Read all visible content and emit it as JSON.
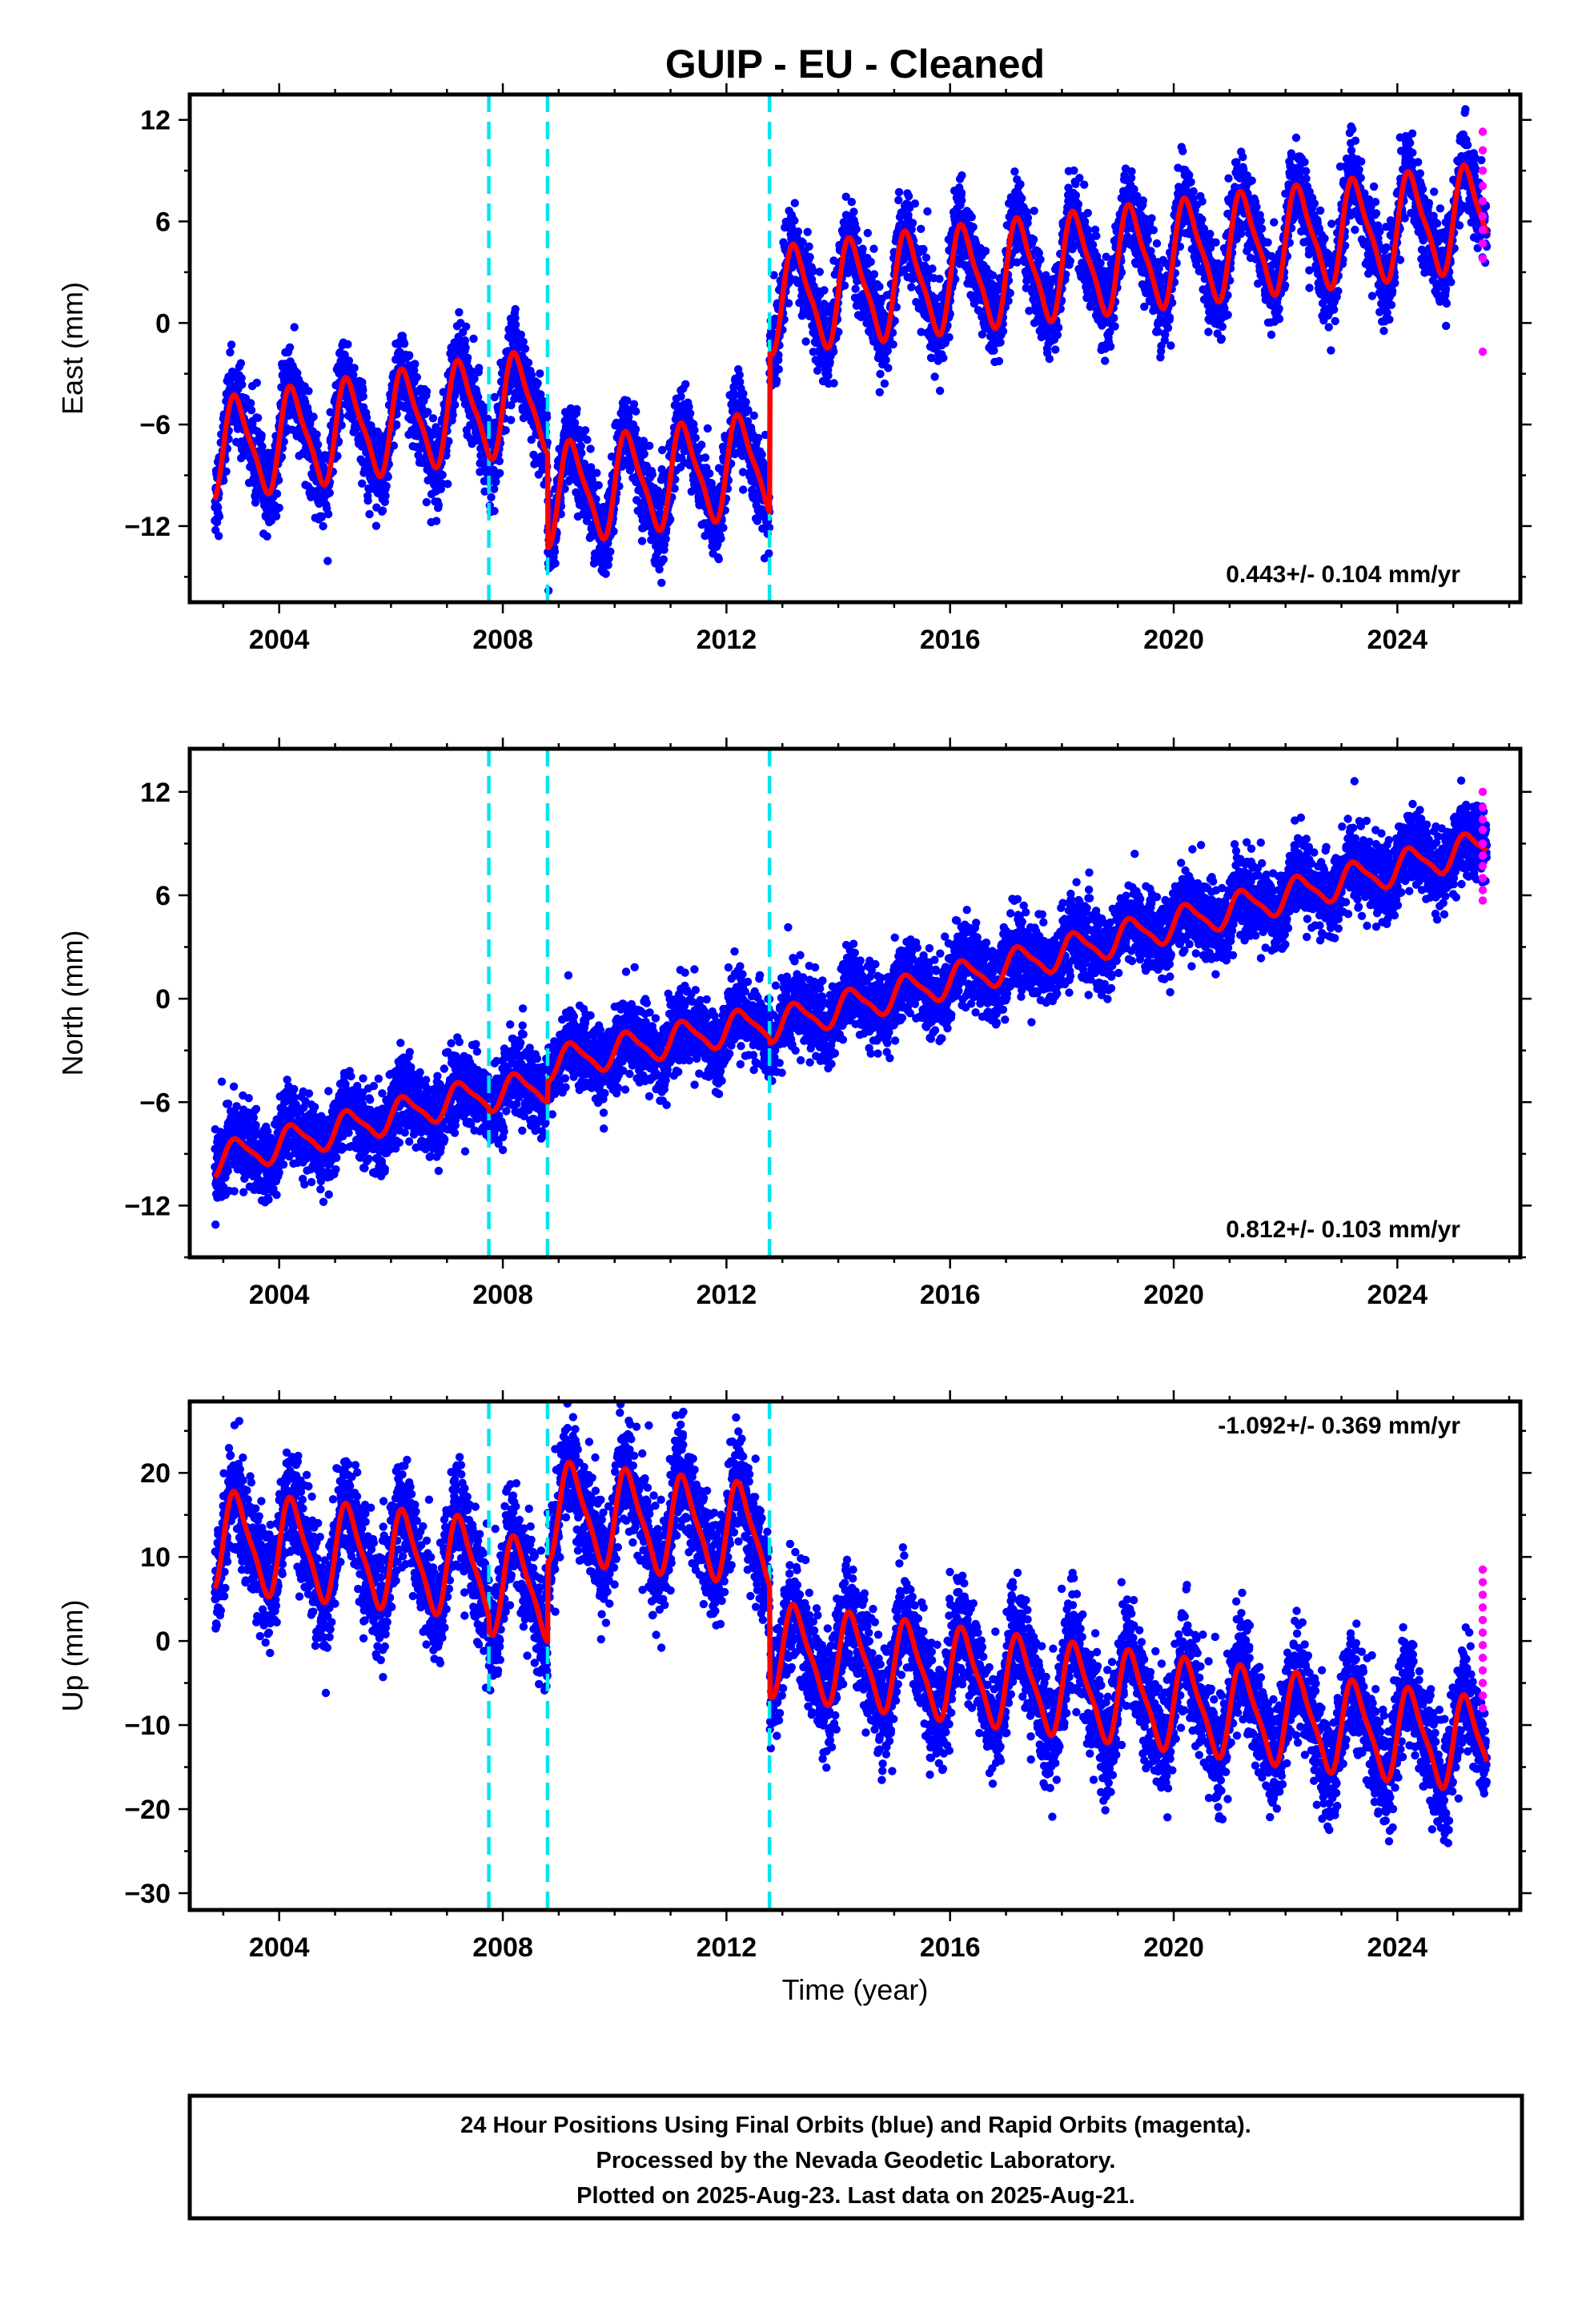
{
  "title": "GUIP  - EU - Cleaned",
  "caption": [
    "24 Hour Positions Using Final Orbits (blue) and Rapid Orbits (magenta).",
    "Processed by the Nevada Geodetic Laboratory.",
    "Plotted on 2025-Aug-23. Last data on 2025-Aug-21."
  ],
  "colors": {
    "final_orbits": "#0000ff",
    "rapid_orbits": "#ff00ff",
    "model_fit": "#ff0000",
    "offset_lines": "#00e5ee",
    "frame": "#000000"
  },
  "chart_data": [
    {
      "type": "scatter",
      "component": "east",
      "ylabel": "East (mm)",
      "xlabel": "",
      "xlim": [
        2002.4,
        2026.2
      ],
      "ylim": [
        -16.5,
        13.5
      ],
      "xticks": [
        2004,
        2008,
        2012,
        2016,
        2020,
        2024
      ],
      "yticks": [
        -12,
        -6,
        0,
        6,
        12
      ],
      "grid": false,
      "rate": "0.443+/- 0.104 mm/yr",
      "rate_position": "bottom-right",
      "offset_epochs": [
        2007.75,
        2008.8,
        2012.77
      ],
      "segments": [
        {
          "start": 2002.85,
          "end": 2007.75,
          "start_value": -7.5,
          "end_value": -5.0,
          "annual_amplitude": 2.8
        },
        {
          "start": 2007.75,
          "end": 2008.8,
          "start_value": -5.0,
          "end_value": -4.6,
          "annual_amplitude": 2.8
        },
        {
          "start": 2008.8,
          "end": 2012.77,
          "start_value": -10.2,
          "end_value": -8.2,
          "annual_amplitude": 2.8
        },
        {
          "start": 2012.77,
          "end": 2025.6,
          "start_value": 1.3,
          "end_value": 6.3,
          "annual_amplitude": 2.9
        }
      ],
      "scatter_sigma": 1.2,
      "rapid_values": [
        11.3,
        10.2,
        9.0,
        8.1,
        7.2,
        6.3,
        5.5,
        4.7,
        3.8,
        -1.7
      ]
    },
    {
      "type": "scatter",
      "component": "north",
      "ylabel": "North (mm)",
      "xlabel": "",
      "xlim": [
        2002.4,
        2026.2
      ],
      "ylim": [
        -15.0,
        14.5
      ],
      "xticks": [
        2004,
        2008,
        2012,
        2016,
        2020,
        2024
      ],
      "yticks": [
        -12,
        -6,
        0,
        6,
        12
      ],
      "grid": false,
      "rate": "0.812+/- 0.103 mm/yr",
      "rate_position": "bottom-right",
      "offset_epochs": [
        2007.75,
        2008.8,
        2012.77
      ],
      "segments": [
        {
          "start": 2002.85,
          "end": 2007.75,
          "start_value": -9.4,
          "end_value": -5.4,
          "annual_amplitude": 0.9
        },
        {
          "start": 2007.75,
          "end": 2008.8,
          "start_value": -5.6,
          "end_value": -5.0,
          "annual_amplitude": 0.9
        },
        {
          "start": 2008.8,
          "end": 2012.77,
          "start_value": -3.8,
          "end_value": -1.3,
          "annual_amplitude": 0.9
        },
        {
          "start": 2012.77,
          "end": 2025.6,
          "start_value": -1.6,
          "end_value": 8.9,
          "annual_amplitude": 0.9
        }
      ],
      "scatter_sigma": 1.1,
      "rapid_values": [
        12.0,
        11.1,
        10.4,
        9.8,
        9.0,
        8.3,
        7.7,
        7.0,
        6.3,
        5.7
      ]
    },
    {
      "type": "scatter",
      "component": "up",
      "ylabel": "Up (mm)",
      "xlabel": "Time (year)",
      "xlim": [
        2002.4,
        2026.2
      ],
      "ylim": [
        -32.0,
        28.5
      ],
      "xticks": [
        2004,
        2008,
        2012,
        2016,
        2020,
        2024
      ],
      "yticks": [
        -30,
        -20,
        -10,
        0,
        10,
        20
      ],
      "grid": false,
      "rate": "-1.092+/- 0.369 mm/yr",
      "rate_position": "top-right",
      "offset_epochs": [
        2007.75,
        2008.8,
        2012.77
      ],
      "segments": [
        {
          "start": 2002.85,
          "end": 2007.75,
          "start_value": 12.0,
          "end_value": 8.5,
          "annual_amplitude": 5.5
        },
        {
          "start": 2007.75,
          "end": 2008.8,
          "start_value": 6.8,
          "end_value": 6.0,
          "annual_amplitude": 5.5
        },
        {
          "start": 2008.8,
          "end": 2012.77,
          "start_value": 15.5,
          "end_value": 12.5,
          "annual_amplitude": 5.5
        },
        {
          "start": 2012.77,
          "end": 2025.6,
          "start_value": -1.0,
          "end_value": -12.5,
          "annual_amplitude": 5.2
        }
      ],
      "scatter_sigma": 3.2,
      "rapid_values": [
        8.5,
        7.0,
        5.5,
        4.0,
        2.5,
        1.0,
        -0.5,
        -2.0,
        -3.5,
        -5.0,
        -6.5,
        -8.0
      ]
    }
  ]
}
